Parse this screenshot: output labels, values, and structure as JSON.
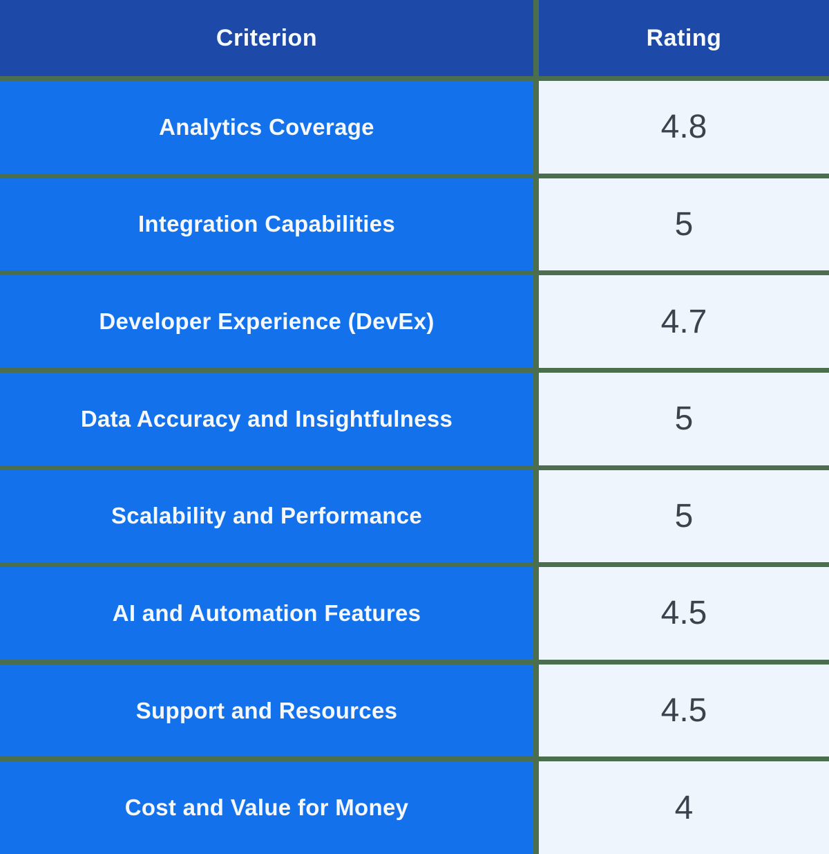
{
  "chart_data": {
    "type": "table",
    "columns": [
      "Criterion",
      "Rating"
    ],
    "rows": [
      {
        "criterion": "Analytics Coverage",
        "rating": "4.8"
      },
      {
        "criterion": "Integration Capabilities",
        "rating": "5"
      },
      {
        "criterion": "Developer Experience (DevEx)",
        "rating": "4.7"
      },
      {
        "criterion": "Data Accuracy and Insightfulness",
        "rating": "5"
      },
      {
        "criterion": "Scalability and Performance",
        "rating": "5"
      },
      {
        "criterion": "AI and Automation Features",
        "rating": "4.5"
      },
      {
        "criterion": "Support and Resources",
        "rating": "4.5"
      },
      {
        "criterion": "Cost and Value for Money",
        "rating": "4"
      }
    ]
  },
  "colors": {
    "header_bg": "#1d4aa9",
    "criterion_bg": "#1471ec",
    "rating_bg": "#eef5fc",
    "grid_line": "#4b6e4f",
    "header_text": "#f7fafd",
    "criterion_text": "#f4f8fc",
    "rating_text": "#3a434d"
  }
}
